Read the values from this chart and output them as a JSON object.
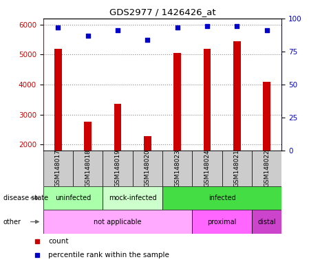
{
  "title": "GDS2977 / 1426426_at",
  "samples": [
    "GSM148017",
    "GSM148018",
    "GSM148019",
    "GSM148020",
    "GSM148023",
    "GSM148024",
    "GSM148021",
    "GSM148022"
  ],
  "counts": [
    5200,
    2750,
    3350,
    2270,
    5050,
    5200,
    5450,
    4100
  ],
  "percentile_ranks": [
    93,
    87,
    91,
    84,
    93,
    94,
    94,
    91
  ],
  "ylim_left": [
    1800,
    6200
  ],
  "ylim_right": [
    0,
    100
  ],
  "yticks_left": [
    2000,
    3000,
    4000,
    5000,
    6000
  ],
  "yticks_right": [
    0,
    25,
    50,
    75,
    100
  ],
  "bar_color": "#cc0000",
  "dot_color": "#0000cc",
  "bar_width": 0.25,
  "disease_state_labels": [
    {
      "label": "uninfected",
      "start": 0,
      "end": 2,
      "color": "#aaffaa"
    },
    {
      "label": "mock-infected",
      "start": 2,
      "end": 4,
      "color": "#ccffcc"
    },
    {
      "label": "infected",
      "start": 4,
      "end": 8,
      "color": "#44dd44"
    }
  ],
  "other_labels": [
    {
      "label": "not applicable",
      "start": 0,
      "end": 5,
      "color": "#ffaaff"
    },
    {
      "label": "proximal",
      "start": 5,
      "end": 7,
      "color": "#ff66ff"
    },
    {
      "label": "distal",
      "start": 7,
      "end": 8,
      "color": "#cc44cc"
    }
  ],
  "row_labels": [
    "disease state",
    "other"
  ],
  "legend_items": [
    {
      "label": "count",
      "color": "#cc0000"
    },
    {
      "label": "percentile rank within the sample",
      "color": "#0000cc"
    }
  ],
  "xtick_bg_color": "#cccccc",
  "grid_linestyle": "dotted",
  "grid_color": "#888888"
}
